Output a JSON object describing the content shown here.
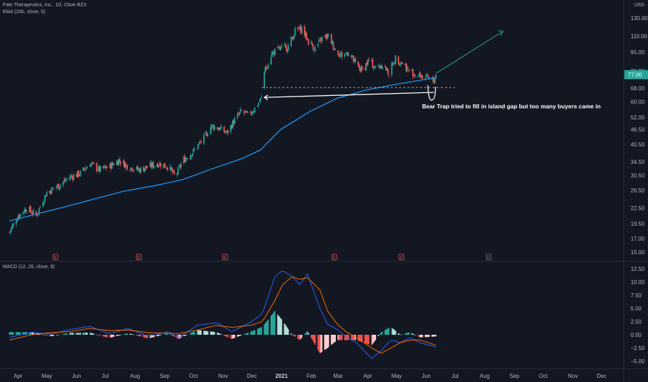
{
  "header": {
    "symbol_line": "Fate Therapeutics, Inc., 1D, Cboe BZX",
    "indicator": "EMA (200, close, 0)",
    "macd_label": "MACD (12, 26, close, 9)",
    "currency": "USD"
  },
  "annotation": {
    "text": "Bear Trap tried to fill in island gap but too many buyers came in"
  },
  "colors": {
    "background": "#131722",
    "up_candle": "#26a69a",
    "down_candle": "#ef5350",
    "ema": "#2196f3",
    "macd_line": "#2962ff",
    "signal_line": "#ff6d00",
    "price_tag": "#26a69a",
    "arrow": "#26a69a"
  },
  "chart_data": [
    {
      "type": "candlestick",
      "title": "Fate Therapeutics, Inc., 1D, Cboe BZX",
      "y_scale": "log",
      "y_ticks": [
        "130.00",
        "110.00",
        "95.00",
        "80.00",
        "68.00",
        "60.00",
        "52.00",
        "46.50",
        "40.50",
        "34.50",
        "30.50",
        "26.50",
        "22.50",
        "19.50",
        "17.00",
        "15.00"
      ],
      "y_tick_values": [
        130,
        110,
        95,
        80,
        68,
        60,
        52,
        46.5,
        40.5,
        34.5,
        30.5,
        26.5,
        22.5,
        19.5,
        17,
        15
      ],
      "ylim": [
        14,
        145
      ],
      "x_ticks": [
        "Apr",
        "May",
        "Jun",
        "Jul",
        "Aug",
        "Sep",
        "Oct",
        "Nov",
        "Dec",
        "2021",
        "Feb",
        "Mar",
        "Apr",
        "May",
        "Jun",
        "Jul",
        "Aug",
        "Sep",
        "Oct",
        "Nov",
        "Dec"
      ],
      "x_tick_dates": [
        "2020-04-01",
        "2020-05-01",
        "2020-06-01",
        "2020-07-01",
        "2020-08-01",
        "2020-09-01",
        "2020-10-01",
        "2020-11-01",
        "2020-12-01",
        "2021-01-01",
        "2021-02-01",
        "2021-03-01",
        "2021-04-01",
        "2021-05-01",
        "2021-06-01",
        "2021-07-01",
        "2021-08-01",
        "2021-09-01",
        "2021-10-01",
        "2021-11-01",
        "2021-12-01"
      ],
      "last_price": "77.00",
      "price_path": [
        [
          "2020-03-23",
          18
        ],
        [
          "2020-04-01",
          21
        ],
        [
          "2020-04-10",
          22.5
        ],
        [
          "2020-04-20",
          21
        ],
        [
          "2020-05-01",
          26
        ],
        [
          "2020-05-15",
          28
        ],
        [
          "2020-05-25",
          30
        ],
        [
          "2020-06-05",
          31
        ],
        [
          "2020-06-15",
          34
        ],
        [
          "2020-06-25",
          32
        ],
        [
          "2020-07-05",
          33
        ],
        [
          "2020-07-15",
          35
        ],
        [
          "2020-07-25",
          33
        ],
        [
          "2020-08-05",
          32
        ],
        [
          "2020-08-15",
          33
        ],
        [
          "2020-08-25",
          34
        ],
        [
          "2020-09-05",
          33
        ],
        [
          "2020-09-12",
          30
        ],
        [
          "2020-09-20",
          35
        ],
        [
          "2020-10-01",
          38
        ],
        [
          "2020-10-10",
          42
        ],
        [
          "2020-10-20",
          48
        ],
        [
          "2020-10-28",
          47
        ],
        [
          "2020-11-05",
          45
        ],
        [
          "2020-11-12",
          50
        ],
        [
          "2020-11-20",
          55
        ],
        [
          "2020-11-27",
          53
        ],
        [
          "2020-12-05",
          57
        ],
        [
          "2020-12-11",
          62
        ],
        [
          "2020-12-14",
          79
        ],
        [
          "2020-12-22",
          94
        ],
        [
          "2020-12-31",
          98
        ],
        [
          "2021-01-08",
          100
        ],
        [
          "2021-01-15",
          115
        ],
        [
          "2021-01-22",
          118
        ],
        [
          "2021-01-29",
          105
        ],
        [
          "2021-02-05",
          98
        ],
        [
          "2021-02-12",
          108
        ],
        [
          "2021-02-19",
          110
        ],
        [
          "2021-02-26",
          97
        ],
        [
          "2021-03-05",
          92
        ],
        [
          "2021-03-12",
          95
        ],
        [
          "2021-03-19",
          85
        ],
        [
          "2021-03-26",
          80
        ],
        [
          "2021-04-02",
          88
        ],
        [
          "2021-04-09",
          82
        ],
        [
          "2021-04-16",
          85
        ],
        [
          "2021-04-23",
          78
        ],
        [
          "2021-04-30",
          90
        ],
        [
          "2021-05-07",
          86
        ],
        [
          "2021-05-14",
          80
        ],
        [
          "2021-05-21",
          77
        ],
        [
          "2021-05-28",
          76
        ],
        [
          "2021-06-04",
          74
        ],
        [
          "2021-06-09",
          73
        ],
        [
          "2021-06-11",
          77
        ]
      ],
      "ema_200": [
        [
          "2020-03-23",
          20
        ],
        [
          "2020-04-20",
          21.3
        ],
        [
          "2020-05-20",
          22.8
        ],
        [
          "2020-06-20",
          24.5
        ],
        [
          "2020-07-20",
          26.3
        ],
        [
          "2020-08-20",
          27.6
        ],
        [
          "2020-09-20",
          29.3
        ],
        [
          "2020-10-20",
          32.3
        ],
        [
          "2020-11-20",
          35.5
        ],
        [
          "2020-12-10",
          38.5
        ],
        [
          "2020-12-31",
          46.5
        ],
        [
          "2021-01-31",
          55
        ],
        [
          "2021-02-28",
          62
        ],
        [
          "2021-03-31",
          67
        ],
        [
          "2021-04-30",
          70.5
        ],
        [
          "2021-05-31",
          73.8
        ],
        [
          "2021-06-11",
          75
        ]
      ],
      "island_gap_level": 68.5,
      "earnings_markers": [
        {
          "label": "E",
          "date": "2020-05-10"
        },
        {
          "label": "E",
          "date": "2020-08-05"
        },
        {
          "label": "E",
          "date": "2020-11-03"
        },
        {
          "label": "E",
          "date": "2021-02-25"
        },
        {
          "label": "E",
          "date": "2021-05-06"
        },
        {
          "label": "E",
          "date": "2021-08-05"
        }
      ]
    },
    {
      "type": "macd",
      "title": "MACD (12, 26, close, 9)",
      "y_ticks": [
        "12.50",
        "10.00",
        "7.50",
        "5.00",
        "2.50",
        "0.00",
        "−2.50",
        "−5.00"
      ],
      "y_tick_values": [
        12.5,
        10,
        7.5,
        5,
        2.5,
        0,
        -2.5,
        -5
      ],
      "ylim": [
        -6,
        13.5
      ],
      "macd": [
        [
          "2020-03-23",
          -0.5
        ],
        [
          "2020-04-15",
          0.5
        ],
        [
          "2020-05-05",
          0.1
        ],
        [
          "2020-05-25",
          1.0
        ],
        [
          "2020-06-15",
          1.6
        ],
        [
          "2020-07-05",
          0.2
        ],
        [
          "2020-07-25",
          1.2
        ],
        [
          "2020-08-15",
          -0.3
        ],
        [
          "2020-09-05",
          0.6
        ],
        [
          "2020-09-15",
          -0.6
        ],
        [
          "2020-10-05",
          1.8
        ],
        [
          "2020-10-25",
          2.3
        ],
        [
          "2020-11-10",
          0.6
        ],
        [
          "2020-11-30",
          2.4
        ],
        [
          "2020-12-12",
          4.0
        ],
        [
          "2020-12-25",
          11.0
        ],
        [
          "2021-01-02",
          12.2
        ],
        [
          "2021-01-12",
          11.0
        ],
        [
          "2021-01-20",
          9.5
        ],
        [
          "2021-01-28",
          11.5
        ],
        [
          "2021-02-10",
          5.0
        ],
        [
          "2021-02-18",
          2.0
        ],
        [
          "2021-02-28",
          1.0
        ],
        [
          "2021-03-10",
          -0.5
        ],
        [
          "2021-03-20",
          -1.5
        ],
        [
          "2021-04-05",
          -4.5
        ],
        [
          "2021-04-15",
          -3.0
        ],
        [
          "2021-04-25",
          -1.0
        ],
        [
          "2021-05-05",
          -1.5
        ],
        [
          "2021-05-15",
          -0.5
        ],
        [
          "2021-05-25",
          -1.5
        ],
        [
          "2021-06-05",
          -2.0
        ],
        [
          "2021-06-11",
          -2.3
        ]
      ],
      "signal": [
        [
          "2020-03-23",
          -1.0
        ],
        [
          "2020-04-15",
          0.0
        ],
        [
          "2020-05-05",
          0.4
        ],
        [
          "2020-05-25",
          0.6
        ],
        [
          "2020-06-15",
          1.2
        ],
        [
          "2020-07-05",
          0.8
        ],
        [
          "2020-07-25",
          0.9
        ],
        [
          "2020-08-15",
          0.4
        ],
        [
          "2020-09-05",
          0.3
        ],
        [
          "2020-09-15",
          0.2
        ],
        [
          "2020-10-05",
          0.9
        ],
        [
          "2020-10-25",
          1.8
        ],
        [
          "2020-11-10",
          1.4
        ],
        [
          "2020-11-30",
          1.8
        ],
        [
          "2020-12-12",
          2.5
        ],
        [
          "2020-12-25",
          6.5
        ],
        [
          "2021-01-02",
          9.5
        ],
        [
          "2021-01-12",
          11.0
        ],
        [
          "2021-01-20",
          10.5
        ],
        [
          "2021-01-28",
          10.8
        ],
        [
          "2021-02-10",
          8.5
        ],
        [
          "2021-02-18",
          4.5
        ],
        [
          "2021-02-28",
          2.0
        ],
        [
          "2021-03-10",
          0.5
        ],
        [
          "2021-03-20",
          -0.5
        ],
        [
          "2021-04-05",
          -2.5
        ],
        [
          "2021-04-15",
          -3.5
        ],
        [
          "2021-04-25",
          -2.5
        ],
        [
          "2021-05-05",
          -1.5
        ],
        [
          "2021-05-15",
          -1.0
        ],
        [
          "2021-05-25",
          -1.0
        ],
        [
          "2021-06-05",
          -1.6
        ],
        [
          "2021-06-11",
          -2.0
        ]
      ]
    }
  ]
}
